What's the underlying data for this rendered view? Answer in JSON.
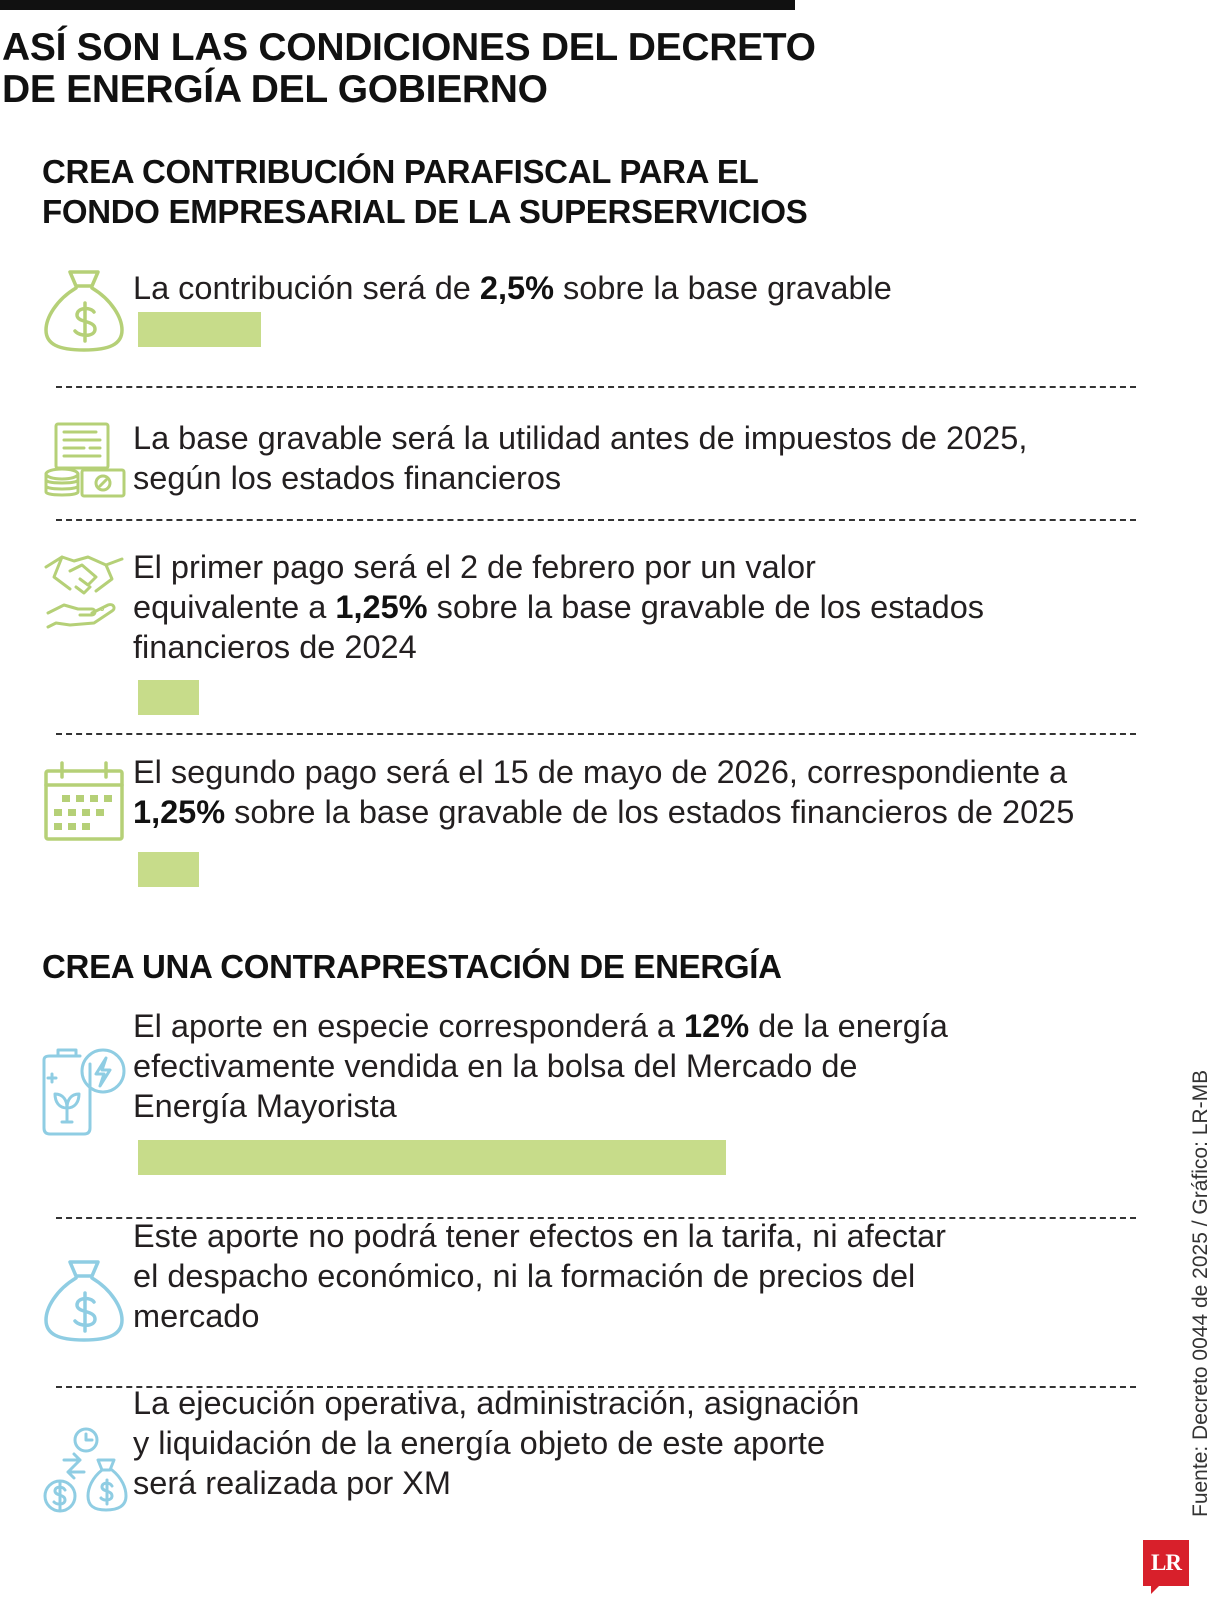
{
  "title": "ASÍ SON LAS CONDICIONES DEL DECRETO\nDE ENERGÍA DEL GOBIERNO",
  "colors": {
    "bar": "#c7dc8a",
    "icon_green": "#b5d077",
    "icon_blue": "#8fcde3",
    "logo": "#d8202b"
  },
  "sections": [
    {
      "heading": "CREA CONTRIBUCIÓN PARAFISCAL PARA EL\nFONDO EMPRESARIAL DE LA SUPERSERVICIOS",
      "items": [
        {
          "icon": "money-bag-icon",
          "lines": [
            [
              "La contribución será de ",
              "2,5%",
              " sobre la base gravable"
            ]
          ],
          "percent": 2.5
        },
        {
          "icon": "financial-statements-icon",
          "lines": [
            [
              "La base gravable será la utilidad antes de impuestos de 2025,"
            ],
            [
              "según los estados financieros"
            ]
          ]
        },
        {
          "icon": "handshake-icon",
          "lines": [
            [
              "El primer pago será el 2 de febrero por un valor"
            ],
            [
              "equivalente a ",
              "1,25%",
              " sobre la base gravable de los estados"
            ],
            [
              "financieros de 2024"
            ]
          ],
          "percent": 1.25
        },
        {
          "icon": "calendar-icon",
          "lines": [
            [
              "El segundo pago será el 15 de mayo de 2026, correspondiente a"
            ],
            [
              "",
              "1,25%",
              " sobre la base gravable de los estados financieros de 2025"
            ]
          ],
          "percent": 1.25
        }
      ]
    },
    {
      "heading": "CREA UNA CONTRAPRESTACIÓN DE ENERGÍA",
      "items": [
        {
          "icon": "green-energy-battery-icon",
          "lines": [
            [
              "El aporte en especie corresponderá a ",
              "12%",
              " de la energía"
            ],
            [
              "efectivamente vendida en la bolsa del Mercado de"
            ],
            [
              "Energía Mayorista"
            ]
          ],
          "percent": 12
        },
        {
          "icon": "money-bag-icon",
          "lines": [
            [
              "Este aporte no podrá tener efectos en la tarifa, ni afectar"
            ],
            [
              "el despacho económico, ni la formación de precios del"
            ],
            [
              "mercado"
            ]
          ]
        },
        {
          "icon": "money-exchange-icon",
          "lines": [
            [
              "La ejecución operativa, administración, asignación"
            ],
            [
              "y liquidación de la energía objeto de este aporte"
            ],
            [
              "será realizada por XM"
            ]
          ]
        }
      ]
    }
  ],
  "source": "Fuente: Decreto 0044 de 2025 / Gráfico: LR-MB",
  "logo": "LR"
}
